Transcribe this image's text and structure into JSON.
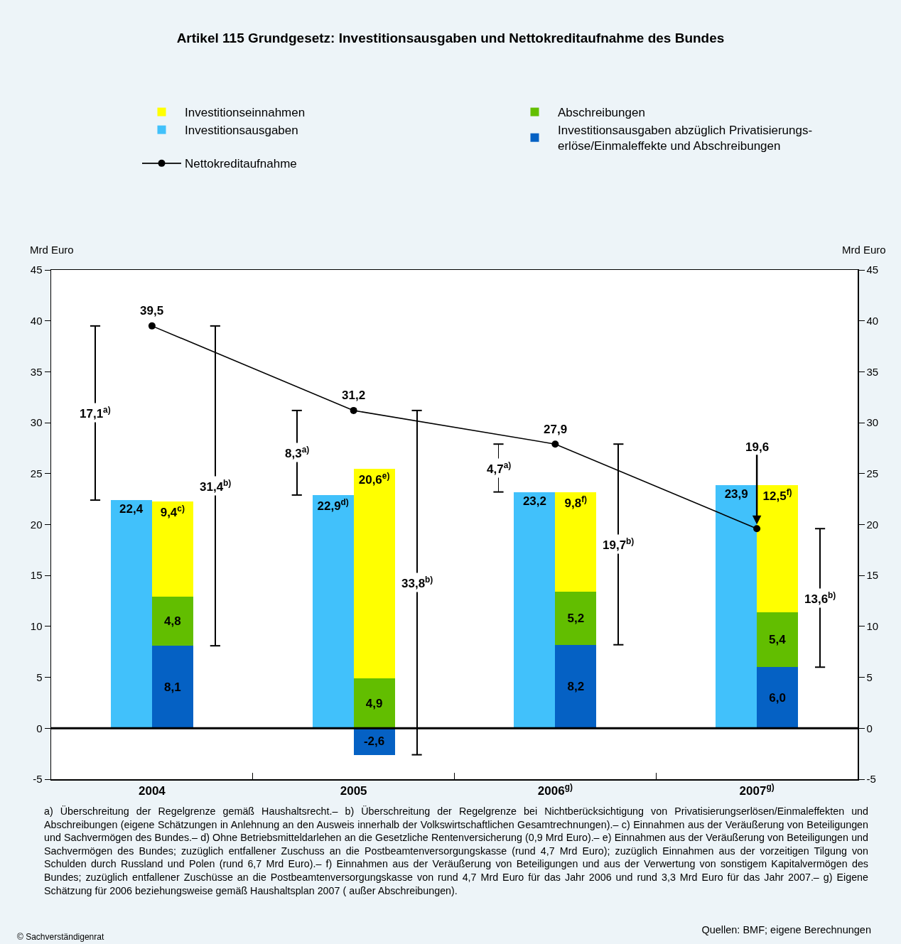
{
  "chart_data": {
    "type": "bar",
    "title": "Artikel 115 Grundgesetz: Investitionsausgaben und Nettokreditaufnahme des Bundes",
    "ylabel": "Mrd Euro",
    "y2label": "Mrd Euro",
    "categories": [
      "2004",
      "2005",
      "2006$^{g)}$",
      "2007$^{g)}$"
    ],
    "series": [
      {
        "name": "Investitionseinnahmen",
        "color": "#ffff00",
        "values": [
          9.4,
          20.6,
          9.8,
          12.5
        ],
        "base": [
          12.9,
          4.9,
          13.4,
          11.4
        ],
        "value_labels": [
          "9,4$^{c)}$",
          "20,6$^{e)}$",
          "9,8$^{f)}$",
          "12,5$^{f)}$"
        ]
      },
      {
        "name": "Abschreibungen",
        "color": "#62be00",
        "values": [
          4.8,
          4.9,
          5.2,
          5.4
        ],
        "base": [
          8.1,
          0,
          8.2,
          6.0
        ],
        "value_labels": [
          "4,8",
          "4,9",
          "5,2",
          "5,4"
        ]
      },
      {
        "name": "Investitionsausgaben",
        "color": "#41c1fb",
        "values": [
          22.4,
          22.9,
          23.2,
          23.9
        ],
        "base": [
          0,
          0,
          0,
          0
        ],
        "value_labels": [
          "22,4",
          "22,9$^{d)}$",
          "23,2",
          "23,9"
        ]
      },
      {
        "name": "Investitionsausgaben abzüglich Privatisierungs-\nerlöse/Einmaleffekte und Abschreibungen",
        "color": "#0561c4",
        "values": [
          8.1,
          -2.6,
          8.2,
          6.0
        ],
        "base": [
          0,
          0,
          0,
          0
        ],
        "value_labels": [
          "8,1",
          "-2,6",
          "8,2",
          "6,0"
        ]
      },
      {
        "color": "#000000",
        "values": [
          17.1,
          8.3,
          4.7,
          null
        ],
        "base": [
          22.4,
          22.9,
          23.2,
          null
        ],
        "value_labels": [
          "17,1$^{a)}$",
          "8,3$^{a)}$",
          "4,7$^{a)}$",
          null
        ]
      },
      {
        "color": "#000000",
        "values": [
          31.4,
          33.8,
          19.7,
          13.6
        ],
        "base": [
          8.1,
          -2.6,
          8.2,
          6.0
        ],
        "value_labels": [
          "31,4$^{b)}$",
          "33,8$^{b)}$",
          "19,7$^{b)}$",
          "13,6$^{b)}$"
        ]
      },
      {
        "name": "Nettokreditaufnahme",
        "type": "line",
        "color": "#000000",
        "values": [
          39.5,
          31.2,
          27.9,
          19.6
        ],
        "value_labels": [
          "39,5",
          "31,2",
          "27,9",
          "19,6"
        ]
      }
    ],
    "marker": "circle",
    "line_style": "solid",
    "ylim": [
      -5,
      45
    ],
    "yticks": [
      -5,
      0,
      5,
      10,
      15,
      20,
      25,
      30,
      35,
      40,
      45
    ],
    "y2lim": [
      -5,
      45
    ],
    "y2ticks": [
      -5,
      0,
      5,
      10,
      15,
      20,
      25,
      30,
      35,
      40,
      45
    ],
    "ref_lines": [
      {
        "axis": "y",
        "value": 0,
        "color": "#000000"
      }
    ],
    "legend": "top",
    "annotations": [
      "a) Überschreitung der Regelgrenze gemäß Haushaltsrecht.– b) Überschreitung der Regelgrenze bei Nichtberücksichtigung von Privatisierungserlösen/Einmaleffekten und Abschreibungen (eigene Schätzungen in Anlehnung an den Ausweis innerhalb der Volkswirtschaftlichen Gesamtrechnungen).– c) Einnahmen aus der Veräußerung von Beteiligungen und Sachvermögen des Bundes.– d) Ohne Betriebsmitteldarlehen an die Gesetzliche Rentenversicherung (0,9 Mrd Euro).– e) Einnahmen aus der Veräußerung von Beteiligungen und Sachvermögen des Bundes; zuzüglich entfallener Zuschuss an die Postbeamtenversorgungskasse (rund 4,7 Mrd Euro); zuzüglich Einnahmen aus der vorzeitigen Tilgung von Schulden durch Russland und Polen (rund 6,7 Mrd Euro).– f) Einnahmen aus der Veräußerung von Beteiligungen und aus der Verwertung von sonstigem Kapitalvermögen des Bundes; zuzüglich entfallener Zuschüsse an die Postbeamtenversorgungskasse von rund 4,7 Mrd Euro für das Jahr 2006 und rund 3,3 Mrd Euro für das Jahr 2007.– g) Eigene Schätzung für 2006 beziehungsweise gemäß Haushaltsplan 2007 ( außer Abschreibungen).",
      "Quellen: BMF; eigene Berechnungen",
      "© Sachverständigenrat"
    ]
  }
}
